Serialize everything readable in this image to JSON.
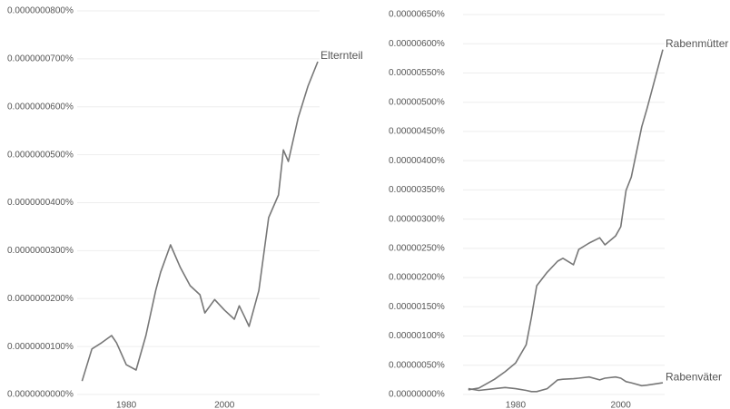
{
  "chart_data": [
    {
      "type": "line",
      "x": [
        1971,
        1973,
        1975,
        1977,
        1978,
        1980,
        1982,
        1984,
        1986,
        1987,
        1989,
        1991,
        1993,
        1995,
        1996,
        1998,
        2000,
        2002,
        2003,
        2004,
        2005,
        2007,
        2009,
        2011,
        2012,
        2013,
        2015,
        2017,
        2019
      ],
      "series": [
        {
          "name": "Elternteil",
          "color": "#777777",
          "values": [
            2.8e-09,
            9.5e-09,
            1.08e-08,
            1.23e-08,
            1.08e-08,
            6.2e-09,
            5.1e-09,
            1.23e-08,
            2.17e-08,
            2.55e-08,
            3.12e-08,
            2.65e-08,
            2.27e-08,
            2.08e-08,
            1.7e-08,
            1.98e-08,
            1.76e-08,
            1.57e-08,
            1.85e-08,
            1.64e-08,
            1.42e-08,
            2.17e-08,
            3.69e-08,
            4.16e-08,
            5.1e-08,
            4.86e-08,
            5.77e-08,
            6.43e-08,
            6.94e-08
          ]
        }
      ],
      "xlim": [
        1970,
        2019
      ],
      "xticks": [
        1980,
        2000
      ],
      "ylim": [
        0,
        8e-08
      ],
      "yticks": [
        {
          "value": 0,
          "label": "0.0000000000%"
        },
        {
          "value": 1e-08,
          "label": "0.0000000100%"
        },
        {
          "value": 2e-08,
          "label": "0.0000000200%"
        },
        {
          "value": 3e-08,
          "label": "0.0000000300%"
        },
        {
          "value": 4e-08,
          "label": "0.0000000400%"
        },
        {
          "value": 5e-08,
          "label": "0.0000000500%"
        },
        {
          "value": 6e-08,
          "label": "0.0000000600%"
        },
        {
          "value": 7e-08,
          "label": "0.0000000700%"
        },
        {
          "value": 8e-08,
          "label": "0.0000000800%"
        }
      ],
      "grid": true
    },
    {
      "type": "line",
      "x": [
        1971,
        1973,
        1976,
        1978,
        1980,
        1982,
        1983,
        1984,
        1986,
        1988,
        1989,
        1991,
        1992,
        1994,
        1996,
        1997,
        1999,
        2000,
        2001,
        2002,
        2004,
        2005,
        2008
      ],
      "series": [
        {
          "name": "Rabenmütter",
          "color": "#777777",
          "values": [
            8e-08,
            1.1e-07,
            2.6e-07,
            3.9e-07,
            5.4e-07,
            8.5e-07,
            1.32e-06,
            1.86e-06,
            2.09e-06,
            2.28e-06,
            2.33e-06,
            2.22e-06,
            2.48e-06,
            2.59e-06,
            2.68e-06,
            2.56e-06,
            2.71e-06,
            2.87e-06,
            3.49e-06,
            3.72e-06,
            4.58e-06,
            4.89e-06,
            5.9e-06
          ]
        },
        {
          "name": "Rabenväter",
          "color": "#777777",
          "values": [
            1e-07,
            7e-08,
            1e-07,
            1.2e-07,
            1e-07,
            7e-08,
            5e-08,
            5e-08,
            1e-07,
            2.5e-07,
            2.6e-07,
            2.7e-07,
            2.8e-07,
            3e-07,
            2.5e-07,
            2.8e-07,
            3e-07,
            2.8e-07,
            2.2e-07,
            2e-07,
            1.5e-07,
            1.6e-07,
            2e-07
          ]
        }
      ],
      "xlim": [
        1970,
        2008
      ],
      "xticks": [
        1980,
        2000
      ],
      "ylim": [
        0,
        6.5e-06
      ],
      "yticks": [
        {
          "value": 0,
          "label": "0.00000000%"
        },
        {
          "value": 5e-07,
          "label": "0.00000050%"
        },
        {
          "value": 1e-06,
          "label": "0.00000100%"
        },
        {
          "value": 1.5e-06,
          "label": "0.00000150%"
        },
        {
          "value": 2e-06,
          "label": "0.00000200%"
        },
        {
          "value": 2.5e-06,
          "label": "0.00000250%"
        },
        {
          "value": 3e-06,
          "label": "0.00000300%"
        },
        {
          "value": 3.5e-06,
          "label": "0.00000350%"
        },
        {
          "value": 4e-06,
          "label": "0.00000400%"
        },
        {
          "value": 4.5e-06,
          "label": "0.00000450%"
        },
        {
          "value": 5e-06,
          "label": "0.00000500%"
        },
        {
          "value": 5.5e-06,
          "label": "0.00000550%"
        },
        {
          "value": 6e-06,
          "label": "0.00000600%"
        },
        {
          "value": 6.5e-06,
          "label": "0.00000650%"
        }
      ],
      "grid": true
    }
  ]
}
